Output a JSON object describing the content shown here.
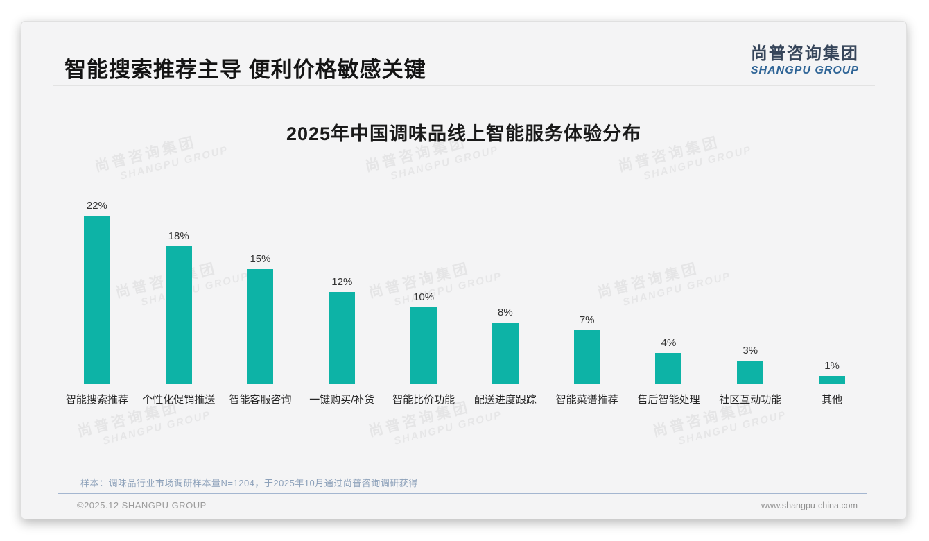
{
  "page": {
    "header_title": "智能搜索推荐主导 便利价格敏感关键",
    "logo": {
      "cn": "尚普咨询集团",
      "en": "SHANGPU GROUP"
    },
    "watermark": {
      "line1": "尚普咨询集团",
      "line2": "SHANGPU GROUP"
    },
    "footnote": "样本：调味品行业市场调研样本量N=1204，于2025年10月通过尚普咨询调研获得",
    "footer_left": "©2025.12 SHANGPU GROUP",
    "footer_right": "www.shangpu-china.com"
  },
  "chart_data": {
    "type": "bar",
    "title": "2025年中国调味品线上智能服务体验分布",
    "categories": [
      "智能搜索推荐",
      "个性化促销推送",
      "智能客服咨询",
      "一键购买/补货",
      "智能比价功能",
      "配送进度跟踪",
      "智能菜谱推荐",
      "售后智能处理",
      "社区互动功能",
      "其他"
    ],
    "values": [
      22,
      18,
      15,
      12,
      10,
      8,
      7,
      4,
      3,
      1
    ],
    "value_labels": [
      "22%",
      "18%",
      "15%",
      "12%",
      "10%",
      "8%",
      "7%",
      "4%",
      "3%",
      "1%"
    ],
    "unit": "%",
    "bar_color": "#0db3a6",
    "xlabel": "",
    "ylabel": "",
    "ylim": [
      0,
      24
    ],
    "grid": false,
    "legend": "none"
  }
}
